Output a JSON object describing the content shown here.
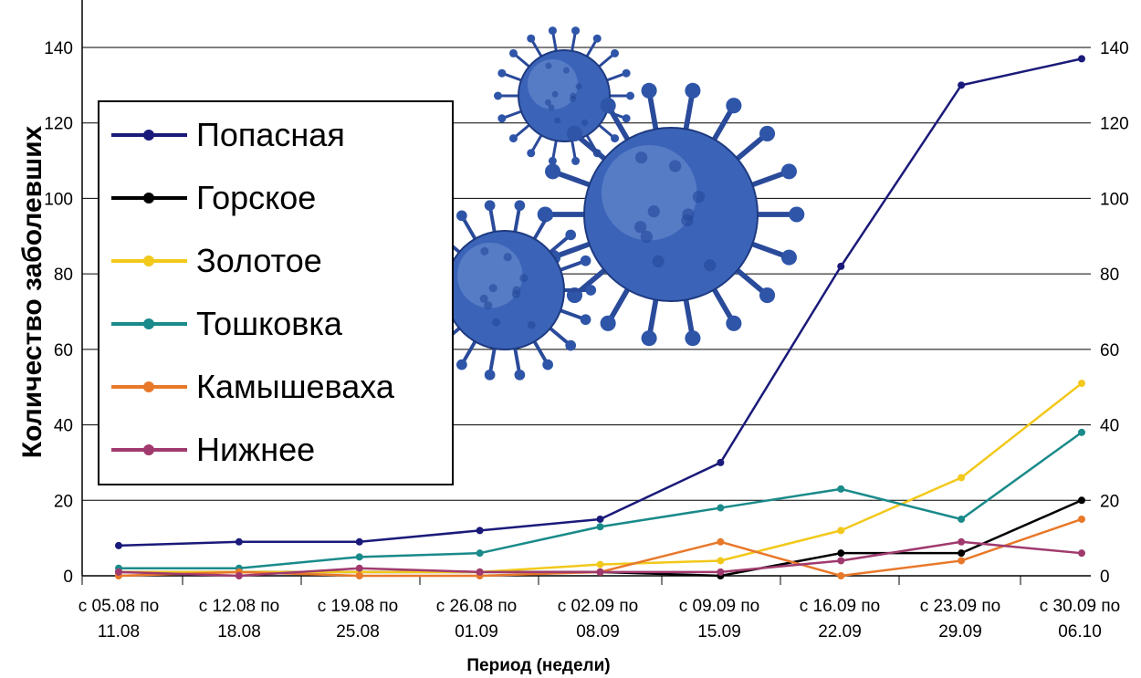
{
  "chart_data": {
    "type": "line",
    "title": "",
    "xlabel": "Период (недели)",
    "ylabel": "Количество заболевших",
    "ylim": [
      0,
      140
    ],
    "yticks": [
      0,
      20,
      40,
      60,
      80,
      100,
      120,
      140
    ],
    "right_axis": true,
    "grid": "horizontal",
    "legend_position": "top-left",
    "categories": [
      {
        "line1": "с 05.08 по",
        "line2": "11.08"
      },
      {
        "line1": "с 12.08 по",
        "line2": "18.08"
      },
      {
        "line1": "с 19.08 по",
        "line2": "25.08"
      },
      {
        "line1": "с 26.08 по",
        "line2": "01.09"
      },
      {
        "line1": "с 02.09 по",
        "line2": "08.09"
      },
      {
        "line1": "с 09.09 по",
        "line2": "15.09"
      },
      {
        "line1": "с 16.09 по",
        "line2": "22.09"
      },
      {
        "line1": "с 23.09 по",
        "line2": "29.09"
      },
      {
        "line1": "с 30.09 по",
        "line2": "06.10"
      }
    ],
    "series": [
      {
        "name": "Попасная",
        "color": "#1a1a7a",
        "values": [
          8,
          9,
          9,
          12,
          15,
          30,
          82,
          130,
          137
        ]
      },
      {
        "name": "Горское",
        "color": "#000000",
        "values": [
          1,
          1,
          1,
          1,
          1,
          0,
          6,
          6,
          20
        ]
      },
      {
        "name": "Золотое",
        "color": "#f2c81a",
        "values": [
          1,
          1,
          1,
          1,
          3,
          4,
          12,
          26,
          51
        ]
      },
      {
        "name": "Тошковка",
        "color": "#1a8a8a",
        "values": [
          2,
          2,
          5,
          6,
          13,
          18,
          23,
          15,
          38
        ]
      },
      {
        "name": "Камышеваха",
        "color": "#e8782a",
        "values": [
          0,
          1,
          0,
          0,
          1,
          9,
          0,
          4,
          15
        ]
      },
      {
        "name": "Нижнее",
        "color": "#a03a6e",
        "values": [
          1,
          0,
          2,
          1,
          1,
          1,
          4,
          9,
          6
        ]
      }
    ]
  },
  "decoration": {
    "image_icon": "virus-illustration"
  }
}
